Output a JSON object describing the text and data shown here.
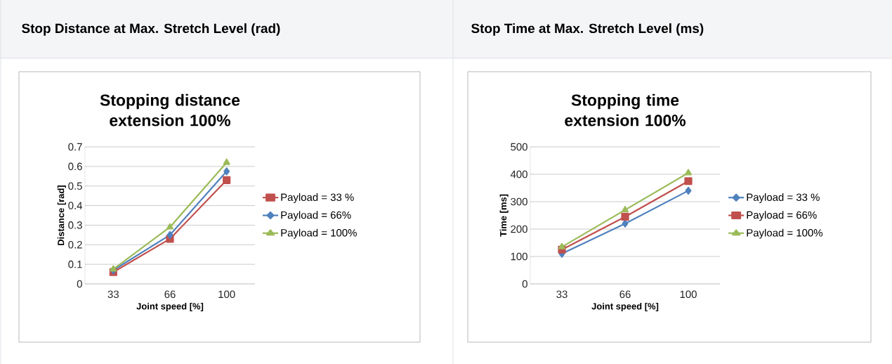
{
  "chart_data": [
    {
      "type": "line",
      "title": "Stop Distance at Max. Stretch Level (rad)",
      "subtitle": "Stopping distance extension 100%",
      "xlabel": "Joint speed [%]",
      "ylabel": "Distance [rad]",
      "categories": [
        "33",
        "66",
        "100"
      ],
      "series": [
        {
          "name": "Payload = 33 %",
          "color": "#c0504d",
          "marker": "square",
          "values": [
            0.06,
            0.23,
            0.53
          ]
        },
        {
          "name": "Payload = 66%",
          "color": "#4f81bd",
          "marker": "diamond",
          "values": [
            0.07,
            0.25,
            0.575
          ]
        },
        {
          "name": "Payload = 100%",
          "color": "#9bbb59",
          "marker": "triangle",
          "values": [
            0.075,
            0.29,
            0.62
          ]
        }
      ],
      "ylim": [
        0,
        0.7
      ],
      "yticks": [
        0,
        0.1,
        0.2,
        0.3,
        0.4,
        0.5,
        0.6,
        0.7
      ],
      "grid": "y",
      "legend": "right"
    },
    {
      "type": "line",
      "title": "Stop Time at Max. Stretch Level (ms)",
      "subtitle": "Stopping time extension 100%",
      "xlabel": "Joint speed [%]",
      "ylabel": "Time [ms]",
      "categories": [
        "33",
        "66",
        "100"
      ],
      "series": [
        {
          "name": "Payload = 33 %",
          "color": "#4f81bd",
          "marker": "diamond",
          "values": [
            110,
            220,
            340
          ]
        },
        {
          "name": "Payload = 66%",
          "color": "#c0504d",
          "marker": "square",
          "values": [
            125,
            245,
            375
          ]
        },
        {
          "name": "Payload = 100%",
          "color": "#9bbb59",
          "marker": "triangle",
          "values": [
            135,
            270,
            405
          ]
        }
      ],
      "ylim": [
        0,
        500
      ],
      "yticks": [
        0,
        100,
        200,
        300,
        400,
        500
      ],
      "grid": "y",
      "legend": "right"
    }
  ]
}
